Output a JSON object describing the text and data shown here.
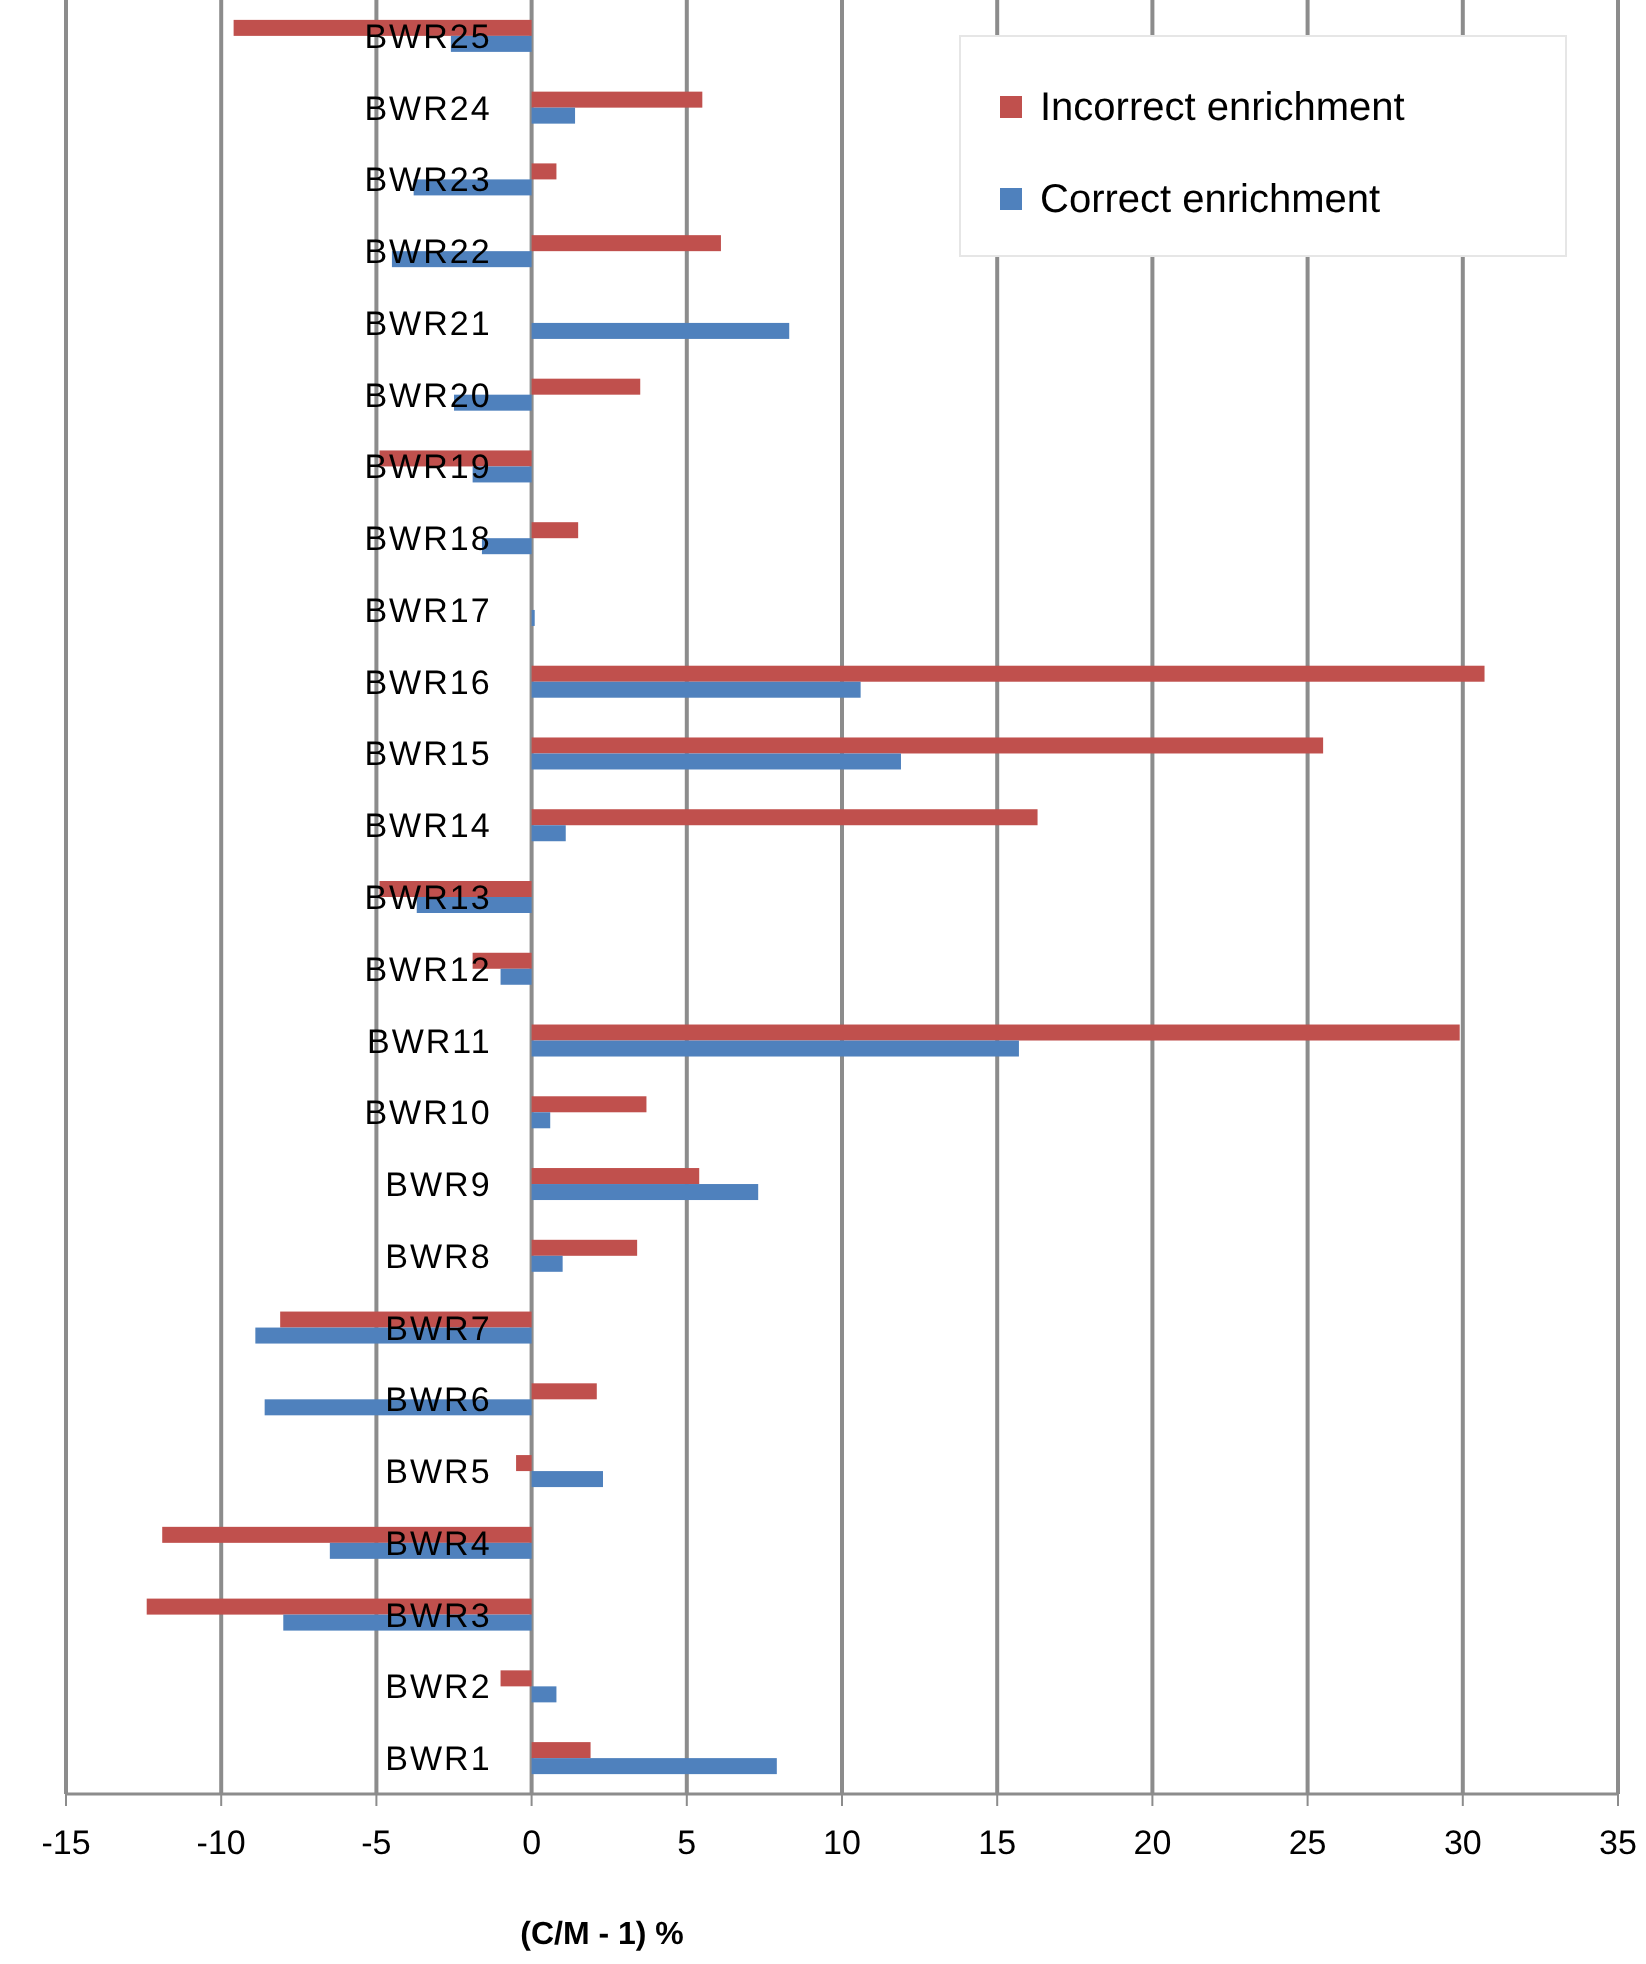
{
  "chart_data": {
    "type": "bar",
    "orientation": "horizontal",
    "xlabel": "(C/M - 1) %",
    "categories": [
      "BWR25",
      "BWR24",
      "BWR23",
      "BWR22",
      "BWR21",
      "BWR20",
      "BWR19",
      "BWR18",
      "BWR17",
      "BWR16",
      "BWR15",
      "BWR14",
      "BWR13",
      "BWR12",
      "BWR11",
      "BWR10",
      "BWR9",
      "BWR8",
      "BWR7",
      "BWR6",
      "BWR5",
      "BWR4",
      "BWR3",
      "BWR2",
      "BWR1"
    ],
    "series": [
      {
        "name": "Incorrect enrichment",
        "color": "#c0504d",
        "values": [
          -9.6,
          5.5,
          0.8,
          6.1,
          0,
          3.5,
          -4.9,
          1.5,
          0,
          30.7,
          25.5,
          16.3,
          -4.9,
          -1.9,
          29.9,
          3.7,
          5.4,
          3.4,
          -8.1,
          2.1,
          -0.5,
          -11.9,
          -12.4,
          -1.0,
          1.9
        ]
      },
      {
        "name": "Correct enrichment",
        "color": "#4f81bd",
        "values": [
          -2.6,
          1.4,
          -3.8,
          -4.5,
          8.3,
          -2.5,
          -1.9,
          -1.6,
          0.1,
          10.6,
          11.9,
          1.1,
          -3.7,
          -1.0,
          15.7,
          0.6,
          7.3,
          1.0,
          -8.9,
          -8.6,
          2.3,
          -6.5,
          -8.0,
          0.8,
          7.9
        ]
      }
    ],
    "xlim": [
      -15,
      35
    ],
    "xticks": [
      -15,
      -10,
      -5,
      0,
      5,
      10,
      15,
      20,
      25,
      30,
      35
    ],
    "grid": "x",
    "legend": "top right"
  }
}
